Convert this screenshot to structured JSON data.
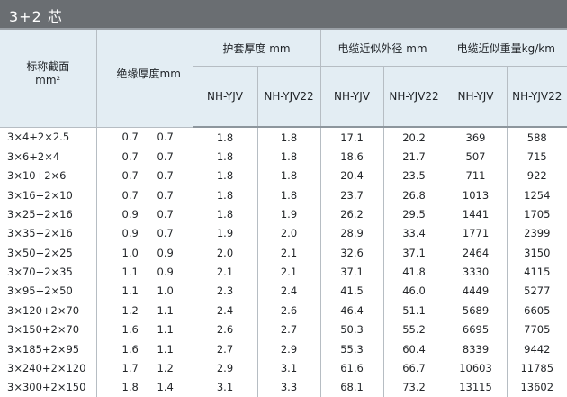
{
  "title": "3+2 芯",
  "headers": {
    "spec": "标称截面",
    "spec_unit": "mm²",
    "insulation": "绝缘厚度mm",
    "sheath": "护套厚度 mm",
    "diameter": "电缆近似外径 mm",
    "weight": "电缆近似重量kg/km",
    "sub": [
      "NH-YJV",
      "NH-YJV22",
      "NH-YJV",
      "NH-YJV22",
      "NH-YJV",
      "NH-YJV22"
    ]
  },
  "rows": [
    [
      "3×4+2×2.5",
      "0.7",
      "0.7",
      "1.8",
      "1.8",
      "17.1",
      "20.2",
      "369",
      "588"
    ],
    [
      "3×6+2×4",
      "0.7",
      "0.7",
      "1.8",
      "1.8",
      "18.6",
      "21.7",
      "507",
      "715"
    ],
    [
      "3×10+2×6",
      "0.7",
      "0.7",
      "1.8",
      "1.8",
      "20.4",
      "23.5",
      "711",
      "922"
    ],
    [
      "3×16+2×10",
      "0.7",
      "0.7",
      "1.8",
      "1.8",
      "23.7",
      "26.8",
      "1013",
      "1254"
    ],
    [
      "3×25+2×16",
      "0.9",
      "0.7",
      "1.8",
      "1.9",
      "26.2",
      "29.5",
      "1441",
      "1705"
    ],
    [
      "3×35+2×16",
      "0.9",
      "0.7",
      "1.9",
      "2.0",
      "28.9",
      "33.4",
      "1771",
      "2399"
    ],
    [
      "3×50+2×25",
      "1.0",
      "0.9",
      "2.0",
      "2.1",
      "32.6",
      "37.1",
      "2464",
      "3150"
    ],
    [
      "3×70+2×35",
      "1.1",
      "0.9",
      "2.1",
      "2.1",
      "37.1",
      "41.8",
      "3330",
      "4115"
    ],
    [
      "3×95+2×50",
      "1.1",
      "1.0",
      "2.3",
      "2.4",
      "41.5",
      "46.0",
      "4449",
      "5277"
    ],
    [
      "3×120+2×70",
      "1.2",
      "1.1",
      "2.4",
      "2.6",
      "46.4",
      "51.1",
      "5689",
      "6605"
    ],
    [
      "3×150+2×70",
      "1.6",
      "1.1",
      "2.6",
      "2.7",
      "50.3",
      "55.2",
      "6695",
      "7705"
    ],
    [
      "3×185+2×95",
      "1.6",
      "1.1",
      "2.7",
      "2.9",
      "55.3",
      "60.4",
      "8339",
      "9442"
    ],
    [
      "3×240+2×120",
      "1.7",
      "1.2",
      "2.9",
      "3.1",
      "61.6",
      "66.7",
      "10603",
      "11785"
    ],
    [
      "3×300+2×150",
      "1.8",
      "1.4",
      "3.1",
      "3.3",
      "68.1",
      "73.2",
      "13115",
      "13602"
    ]
  ]
}
